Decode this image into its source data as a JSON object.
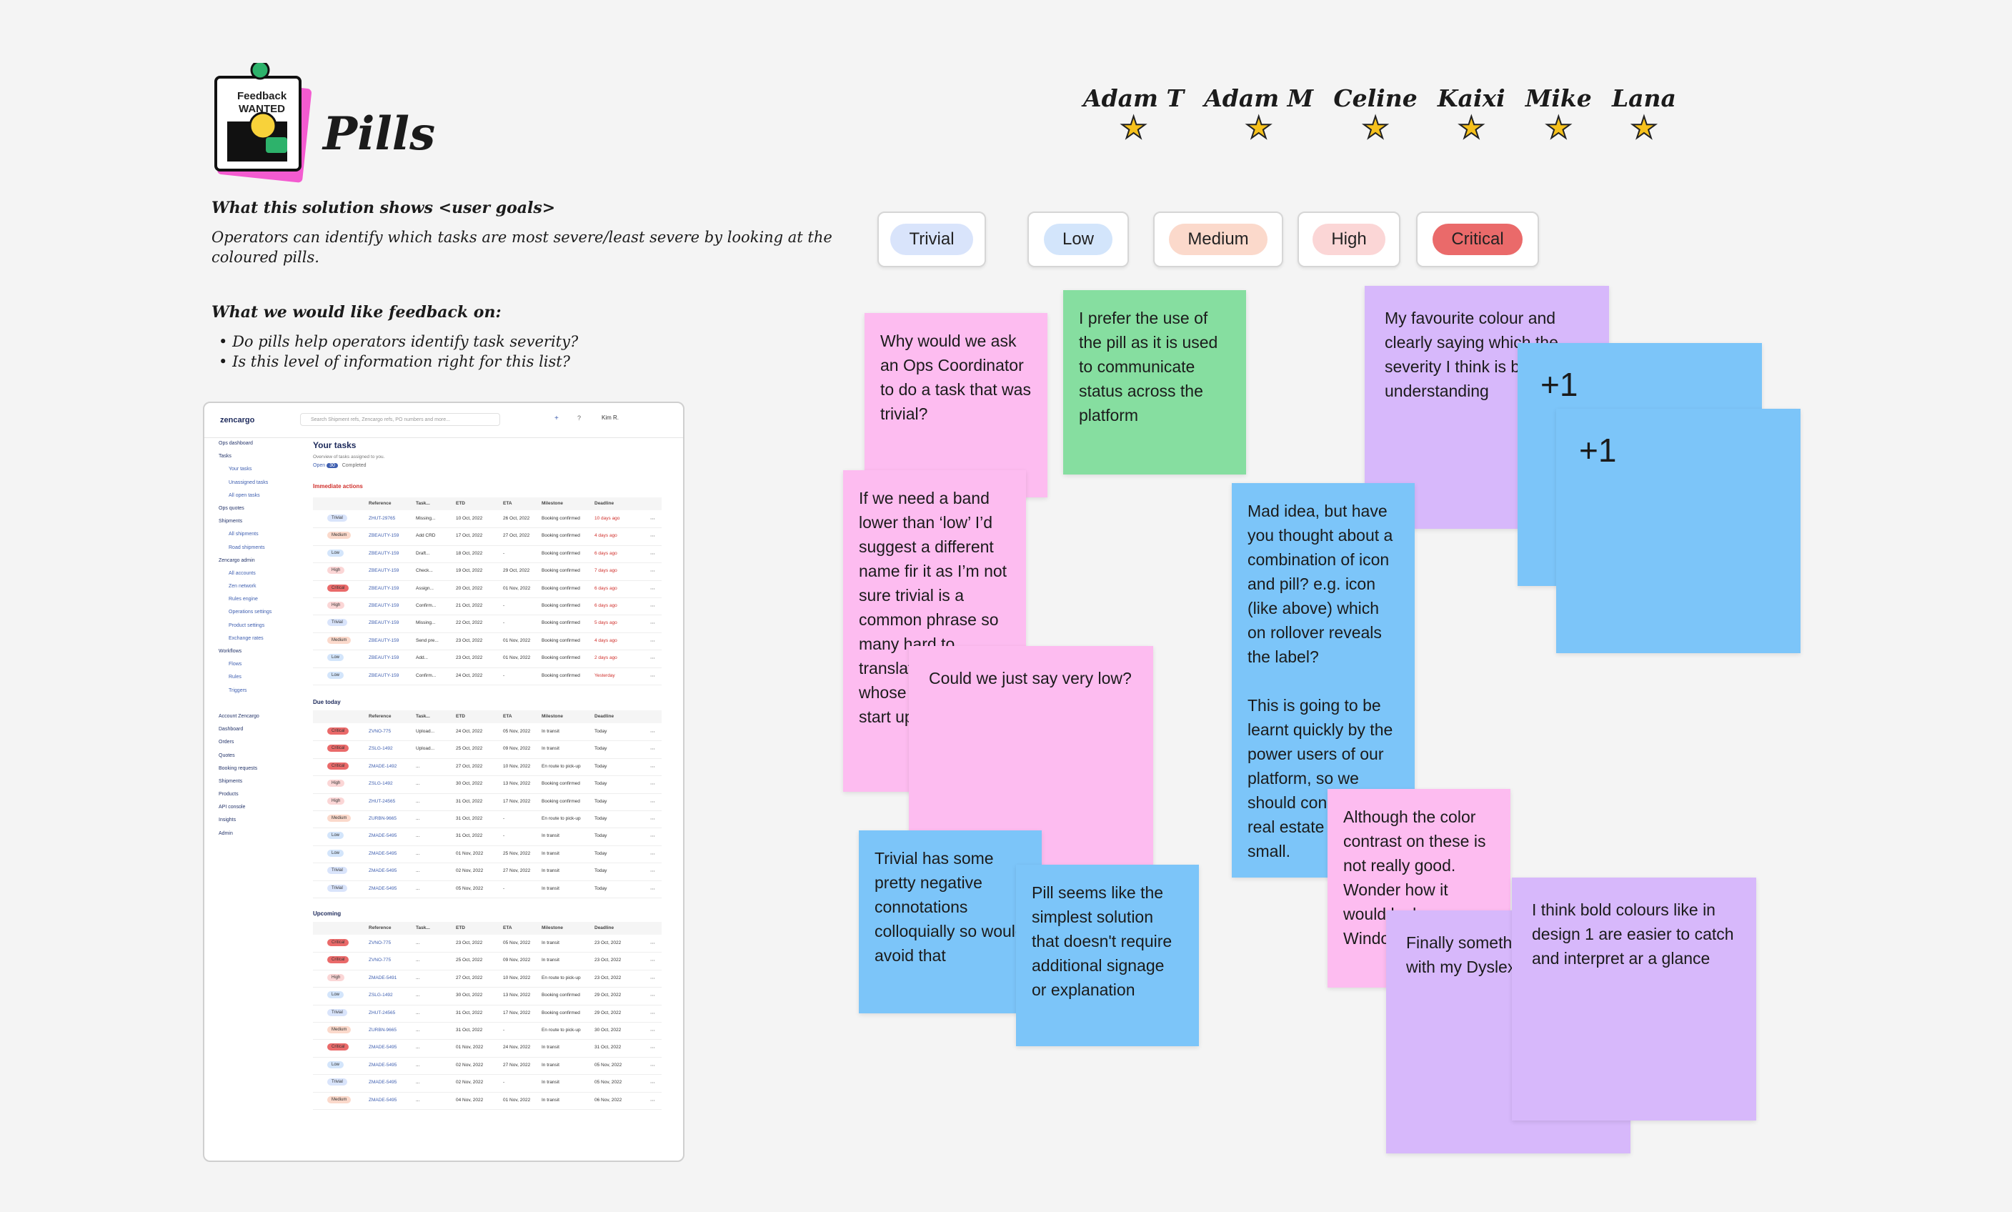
{
  "board": {
    "sticker_top": "Feedback",
    "sticker_bottom": "WANTED",
    "title": "Pills",
    "goal_heading": "What this solution shows <user goals>",
    "goal_text": "Operators can identify which tasks are most severe/least severe by looking at the coloured pills.",
    "feedback_heading": "What we would like feedback on:",
    "feedback_items": [
      "Do pills help operators identify task severity?",
      "Is this level of information right for this list?"
    ]
  },
  "voters": [
    "Adam T",
    "Adam M",
    "Celine",
    "Kaixi",
    "Mike",
    "Lana"
  ],
  "pills": [
    {
      "label": "Trivial",
      "color": "#d9e4fb"
    },
    {
      "label": "Low",
      "color": "#d3e5fb"
    },
    {
      "label": "Medium",
      "color": "#fbd9cb"
    },
    {
      "label": "High",
      "color": "#fbd6d6"
    },
    {
      "label": "Critical",
      "color": "#ea6a6a"
    }
  ],
  "notes": {
    "n1": "Why would we ask an Ops Coordinator to do a task that was trivial?",
    "n2": "I prefer the use of the pill as it is used to communicate status across the platform",
    "n3": "My favourite colour and clearly saying which the severity I think is best for understanding",
    "n4": "+1",
    "n5": "+1",
    "n6": "If we need a band lower than ‘low’ I’d suggest a different name fir it as I’m not sure trivial is a common phrase so many hard to translate for users whose english is a start up on this list.",
    "n7": "Could we just say very low?",
    "n8": "Mad idea, but have you thought about a combination of icon and pill? e.g. icon (like above) which on rollover reveals the label?\n\nThis is going to be learnt quickly by the power users of our platform, so we should consider the real estate however small.",
    "n9": "Although the color contrast on these is not really good. Wonder how it would look on Windows :D",
    "n10": "Trivial has some pretty negative connotations colloquially so would avoid that",
    "n11": "Pill seems like the simplest solution that doesn't require additional signage or explanation",
    "n12": "Finally something to help with my Dyslexia",
    "n13": "I think bold colours like in design 1 are easier to catch and interpret ar a glance"
  },
  "app": {
    "logo": "zencargo",
    "search_placeholder": "Search Shipment refs, Zencargo refs, PO numbers and more...",
    "user": "Kim R.",
    "page_title": "Your tasks",
    "page_subtitle": "Overview of tasks assigned to you.",
    "tab_open": "Open",
    "tab_open_count": "30",
    "tab_completed": "Completed",
    "sidebar": [
      "Ops dashboard",
      "Tasks",
      "Your tasks",
      "Unassigned tasks",
      "All open tasks",
      "Ops quotes",
      "Shipments",
      "All shipments",
      "Road shipments",
      "Zencargo admin",
      "All accounts",
      "Zen network",
      "Rules engine",
      "Operations settings",
      "Product settings",
      "Exchange rates",
      "Workflows",
      "Flows",
      "Rules",
      "Triggers",
      "",
      "Account Zencargo",
      "Dashboard",
      "Orders",
      "Quotes",
      "Booking requests",
      "Shipments",
      "Products",
      "API console",
      "Insights",
      "Admin"
    ],
    "section1": "Immediate actions",
    "section2": "Due today",
    "section3": "Upcoming",
    "columns1": [
      "Reference",
      "Task...",
      "ETD",
      "ETA",
      "Milestone",
      "Deadline"
    ],
    "rows1": [
      [
        "Trivial",
        "ZHUT-29765",
        "Missing...",
        "10 Oct, 2022",
        "26 Oct, 2022",
        "Booking confirmed",
        "10 days ago"
      ],
      [
        "Medium",
        "ZBEAUTY-159",
        "Add CRD",
        "17 Oct, 2022",
        "27 Oct, 2022",
        "Booking confirmed",
        "4 days ago"
      ],
      [
        "Low",
        "ZBEAUTY-159",
        "Draft...",
        "18 Oct, 2022",
        "-",
        "Booking confirmed",
        "6 days ago"
      ],
      [
        "High",
        "ZBEAUTY-159",
        "Check...",
        "19 Oct, 2022",
        "29 Oct, 2022",
        "Booking confirmed",
        "7 days ago"
      ],
      [
        "Critical",
        "ZBEAUTY-159",
        "Assign...",
        "20 Oct, 2022",
        "01 Nov, 2022",
        "Booking confirmed",
        "6 days ago"
      ],
      [
        "High",
        "ZBEAUTY-159",
        "Confirm...",
        "21 Oct, 2022",
        "-",
        "Booking confirmed",
        "6 days ago"
      ],
      [
        "Trivial",
        "ZBEAUTY-159",
        "Missing...",
        "22 Oct, 2022",
        "-",
        "Booking confirmed",
        "5 days ago"
      ],
      [
        "Medium",
        "ZBEAUTY-159",
        "Send pre...",
        "23 Oct, 2022",
        "01 Nov, 2022",
        "Booking confirmed",
        "4 days ago"
      ],
      [
        "Low",
        "ZBEAUTY-159",
        "Add...",
        "23 Oct, 2022",
        "01 Nov, 2022",
        "Booking confirmed",
        "2 days ago"
      ],
      [
        "Low",
        "ZBEAUTY-159",
        "Confirm...",
        "24 Oct, 2022",
        "-",
        "Booking confirmed",
        "Yesterday"
      ]
    ],
    "rows2": [
      [
        "Critical",
        "ZVNO-775",
        "Upload...",
        "24 Oct, 2022",
        "05 Nov, 2022",
        "In transit",
        "Today"
      ],
      [
        "Critical",
        "ZSLG-1492",
        "Upload...",
        "25 Oct, 2022",
        "09 Nov, 2022",
        "In transit",
        "Today"
      ],
      [
        "Critical",
        "ZMADE-1492",
        "...",
        "27 Oct, 2022",
        "10 Nov, 2022",
        "En route to pick-up",
        "Today"
      ],
      [
        "High",
        "ZSLG-1492",
        "...",
        "30 Oct, 2022",
        "13 Nov, 2022",
        "Booking confirmed",
        "Today"
      ],
      [
        "High",
        "ZHUT-24565",
        "...",
        "31 Oct, 2022",
        "17 Nov, 2022",
        "Booking confirmed",
        "Today"
      ],
      [
        "Medium",
        "ZURBN-9665",
        "...",
        "31 Oct, 2022",
        "-",
        "En route to pick-up",
        "Today"
      ],
      [
        "Low",
        "ZMADE-5495",
        "...",
        "31 Oct, 2022",
        "-",
        "In transit",
        "Today"
      ],
      [
        "Low",
        "ZMADE-5495",
        "...",
        "01 Nov, 2022",
        "25 Nov, 2022",
        "In transit",
        "Today"
      ],
      [
        "Trivial",
        "ZMADE-5495",
        "...",
        "02 Nov, 2022",
        "27 Nov, 2022",
        "In transit",
        "Today"
      ],
      [
        "Trivial",
        "ZMADE-5495",
        "...",
        "05 Nov, 2022",
        "-",
        "In transit",
        "Today"
      ]
    ],
    "rows3": [
      [
        "Critical",
        "ZVNO-775",
        "...",
        "23 Oct, 2022",
        "05 Nov, 2022",
        "In transit",
        "23 Oct, 2022"
      ],
      [
        "Critical",
        "ZVNO-775",
        "...",
        "25 Oct, 2022",
        "09 Nov, 2022",
        "In transit",
        "23 Oct, 2022"
      ],
      [
        "High",
        "ZMADE-5491",
        "...",
        "27 Oct, 2022",
        "10 Nov, 2022",
        "En route to pick-up",
        "23 Oct, 2022"
      ],
      [
        "Low",
        "ZSLG-1492",
        "...",
        "30 Oct, 2022",
        "13 Nov, 2022",
        "Booking confirmed",
        "29 Oct, 2022"
      ],
      [
        "Trivial",
        "ZHUT-24565",
        "...",
        "31 Oct, 2022",
        "17 Nov, 2022",
        "Booking confirmed",
        "29 Oct, 2022"
      ],
      [
        "Medium",
        "ZURBN-9665",
        "...",
        "31 Oct, 2022",
        "-",
        "En route to pick-up",
        "30 Oct, 2022"
      ],
      [
        "Critical",
        "ZMADE-5495",
        "...",
        "01 Nov, 2022",
        "24 Nov, 2022",
        "In transit",
        "31 Oct, 2022"
      ],
      [
        "Low",
        "ZMADE-5495",
        "...",
        "02 Nov, 2022",
        "27 Nov, 2022",
        "In transit",
        "05 Nov, 2022"
      ],
      [
        "Trivial",
        "ZMADE-5495",
        "...",
        "02 Nov, 2022",
        "-",
        "In transit",
        "05 Nov, 2022"
      ],
      [
        "Medium",
        "ZMADE-5495",
        "...",
        "04 Nov, 2022",
        "01 Nov, 2022",
        "In transit",
        "06 Nov, 2022"
      ]
    ]
  }
}
